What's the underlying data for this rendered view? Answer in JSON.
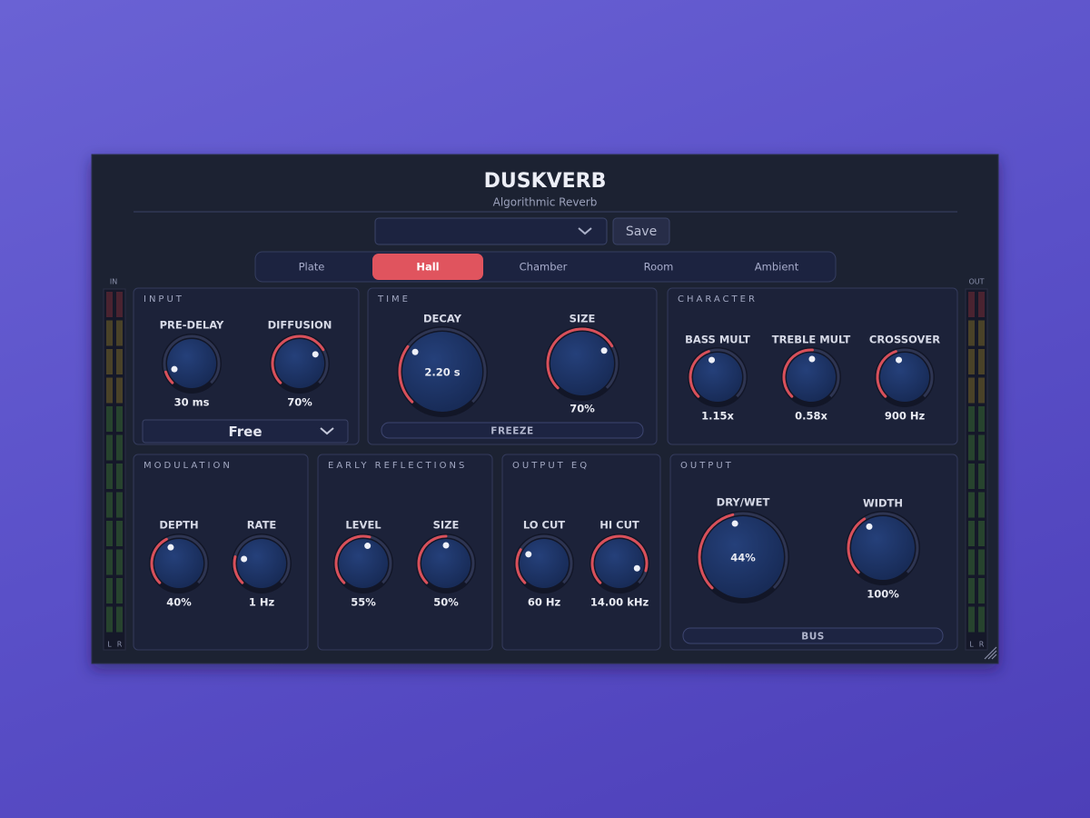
{
  "header": {
    "title": "DUSKVERB",
    "subtitle": "Algorithmic Reverb"
  },
  "preset": {
    "button": "Save"
  },
  "tabs": [
    {
      "label": "Plate"
    },
    {
      "label": "Hall",
      "active": true
    },
    {
      "label": "Chamber"
    },
    {
      "label": "Room"
    },
    {
      "label": "Ambient"
    }
  ],
  "meters": {
    "in": {
      "label": "IN",
      "channels": [
        "L",
        "R"
      ]
    },
    "out": {
      "label": "OUT",
      "channels": [
        "L",
        "R"
      ]
    }
  },
  "sections": [
    {
      "title": "INPUT",
      "knobs": [
        {
          "label": "PRE-DELAY",
          "value": "30 ms",
          "position": 0.1
        },
        {
          "label": "DIFFUSION",
          "value": "70%",
          "position": 0.72
        }
      ],
      "dropdown": "Free"
    },
    {
      "title": "TIME",
      "knobs": [
        {
          "label": "DECAY",
          "value": "2.20 s",
          "position": 0.3
        },
        {
          "label": "SIZE",
          "value": "70%",
          "position": 0.72
        }
      ],
      "button": "FREEZE"
    },
    {
      "title": "CHARACTER",
      "knobs": [
        {
          "label": "BASS MULT",
          "value": "1.15x",
          "position": 0.43
        },
        {
          "label": "TREBLE MULT",
          "value": "0.58x",
          "position": 0.51
        },
        {
          "label": "CROSSOVER",
          "value": "900 Hz",
          "position": 0.43
        }
      ]
    },
    {
      "title": "MODULATION",
      "knobs": [
        {
          "label": "DEPTH",
          "value": "40%",
          "position": 0.4
        },
        {
          "label": "RATE",
          "value": "1 Hz",
          "position": 0.22
        }
      ]
    },
    {
      "title": "EARLY REFLECTIONS",
      "knobs": [
        {
          "label": "LEVEL",
          "value": "55%",
          "position": 0.55
        },
        {
          "label": "SIZE",
          "value": "50%",
          "position": 0.5
        }
      ]
    },
    {
      "title": "OUTPUT EQ",
      "knobs": [
        {
          "label": "LO CUT",
          "value": "60 Hz",
          "position": 0.28
        },
        {
          "label": "HI CUT",
          "value": "14.00 kHz",
          "position": 0.89
        }
      ]
    },
    {
      "title": "OUTPUT",
      "knobs": [
        {
          "label": "DRY/WET",
          "value": "44%",
          "position": 0.45
        },
        {
          "label": "WIDTH",
          "value": "100%",
          "position": 0.38
        }
      ],
      "button": "BUS"
    }
  ]
}
